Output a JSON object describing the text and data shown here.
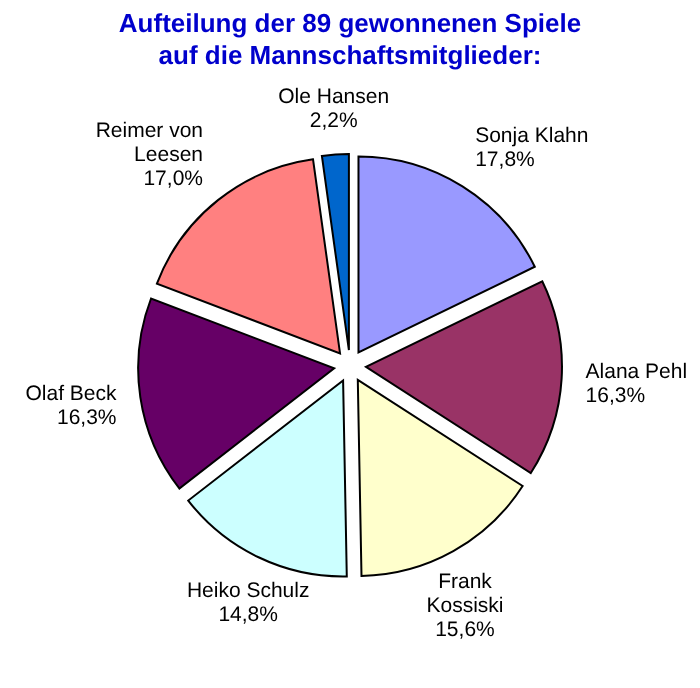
{
  "chart_data": {
    "type": "pie",
    "title": "Aufteilung der 89 gewonnenen Spiele\nauf die Mannschaftsmitglieder:",
    "categories": [
      "Sonja Klahn",
      "Alana Pehl",
      "Frank Kossiski",
      "Heiko Schulz",
      "Olaf Beck",
      "Reimer von Leesen",
      "Ole Hansen"
    ],
    "values": [
      17.8,
      16.3,
      15.6,
      14.8,
      16.3,
      17.0,
      2.2
    ],
    "value_labels": [
      "17,8%",
      "16,3%",
      "15,6%",
      "14,8%",
      "16,3%",
      "17,0%",
      "2,2%"
    ],
    "colors": [
      "#9999ff",
      "#993366",
      "#ffffcc",
      "#ccffff",
      "#660066",
      "#ff8080",
      "#0066cc"
    ]
  }
}
